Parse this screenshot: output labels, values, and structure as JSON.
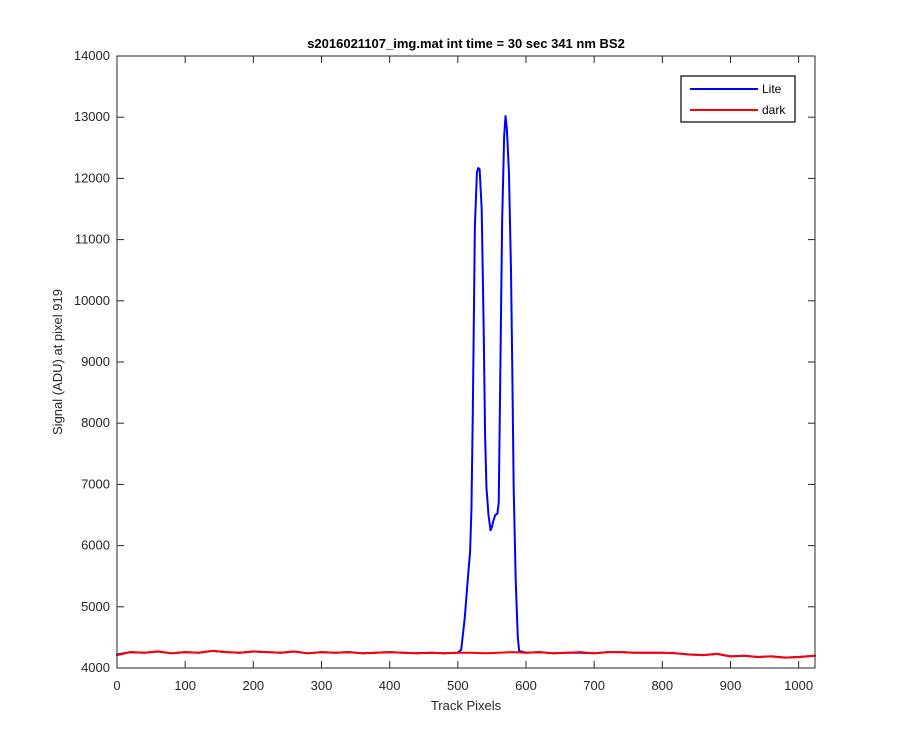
{
  "chart_data": {
    "type": "line",
    "title": "s2016021107_img.mat int time = 30 sec  341 nm BS2",
    "xlabel": "Track Pixels",
    "ylabel": "Signal (ADU) at pixel 919",
    "xlim": [
      0,
      1024
    ],
    "ylim": [
      4000,
      14000
    ],
    "xticks": [
      0,
      100,
      200,
      300,
      400,
      500,
      600,
      700,
      800,
      900,
      1000
    ],
    "yticks": [
      4000,
      5000,
      6000,
      7000,
      8000,
      9000,
      10000,
      11000,
      12000,
      13000,
      14000
    ],
    "grid": false,
    "legend_position": "top-right",
    "series": [
      {
        "name": "Lite",
        "color": "#0000ff",
        "x": [
          0,
          20,
          40,
          60,
          80,
          100,
          120,
          140,
          160,
          180,
          200,
          220,
          240,
          260,
          280,
          300,
          320,
          340,
          360,
          380,
          400,
          420,
          440,
          460,
          480,
          500,
          505,
          510,
          515,
          518,
          520,
          522,
          525,
          528,
          530,
          532,
          535,
          538,
          540,
          542,
          545,
          548,
          550,
          552,
          555,
          558,
          560,
          562,
          565,
          568,
          570,
          572,
          575,
          578,
          580,
          582,
          585,
          588,
          590,
          600,
          620,
          640,
          660,
          680,
          700,
          720,
          740,
          760,
          780,
          800,
          820,
          840,
          860,
          880,
          900,
          920,
          940,
          960,
          980,
          1000,
          1024
        ],
        "y": [
          4220,
          4260,
          4250,
          4270,
          4240,
          4260,
          4250,
          4280,
          4260,
          4250,
          4270,
          4260,
          4250,
          4270,
          4240,
          4260,
          4250,
          4260,
          4240,
          4250,
          4260,
          4250,
          4240,
          4250,
          4240,
          4250,
          4300,
          4800,
          5500,
          5900,
          6600,
          8200,
          11200,
          12100,
          12170,
          12150,
          11500,
          9500,
          7800,
          6950,
          6500,
          6250,
          6300,
          6400,
          6500,
          6520,
          6700,
          8500,
          11300,
          12700,
          13020,
          12800,
          12100,
          10500,
          8800,
          6900,
          5400,
          4500,
          4280,
          4250,
          4260,
          4240,
          4250,
          4250,
          4240,
          4260,
          4260,
          4250,
          4250,
          4250,
          4240,
          4220,
          4210,
          4230,
          4190,
          4200,
          4180,
          4190,
          4170,
          4180,
          4200
        ]
      },
      {
        "name": "dark",
        "color": "#ff0000",
        "x": [
          0,
          20,
          40,
          60,
          80,
          100,
          120,
          140,
          160,
          180,
          200,
          220,
          240,
          260,
          280,
          300,
          320,
          340,
          360,
          380,
          400,
          420,
          440,
          460,
          480,
          500,
          520,
          540,
          560,
          580,
          600,
          620,
          640,
          660,
          680,
          700,
          720,
          740,
          760,
          780,
          800,
          820,
          840,
          860,
          880,
          900,
          920,
          940,
          960,
          980,
          1000,
          1024
        ],
        "y": [
          4210,
          4260,
          4250,
          4270,
          4240,
          4260,
          4250,
          4280,
          4260,
          4250,
          4270,
          4260,
          4250,
          4270,
          4240,
          4260,
          4250,
          4260,
          4240,
          4250,
          4260,
          4250,
          4240,
          4250,
          4240,
          4250,
          4250,
          4240,
          4250,
          4260,
          4250,
          4260,
          4240,
          4250,
          4260,
          4240,
          4260,
          4260,
          4250,
          4250,
          4250,
          4240,
          4220,
          4210,
          4230,
          4190,
          4200,
          4180,
          4190,
          4170,
          4180,
          4200
        ]
      }
    ]
  }
}
